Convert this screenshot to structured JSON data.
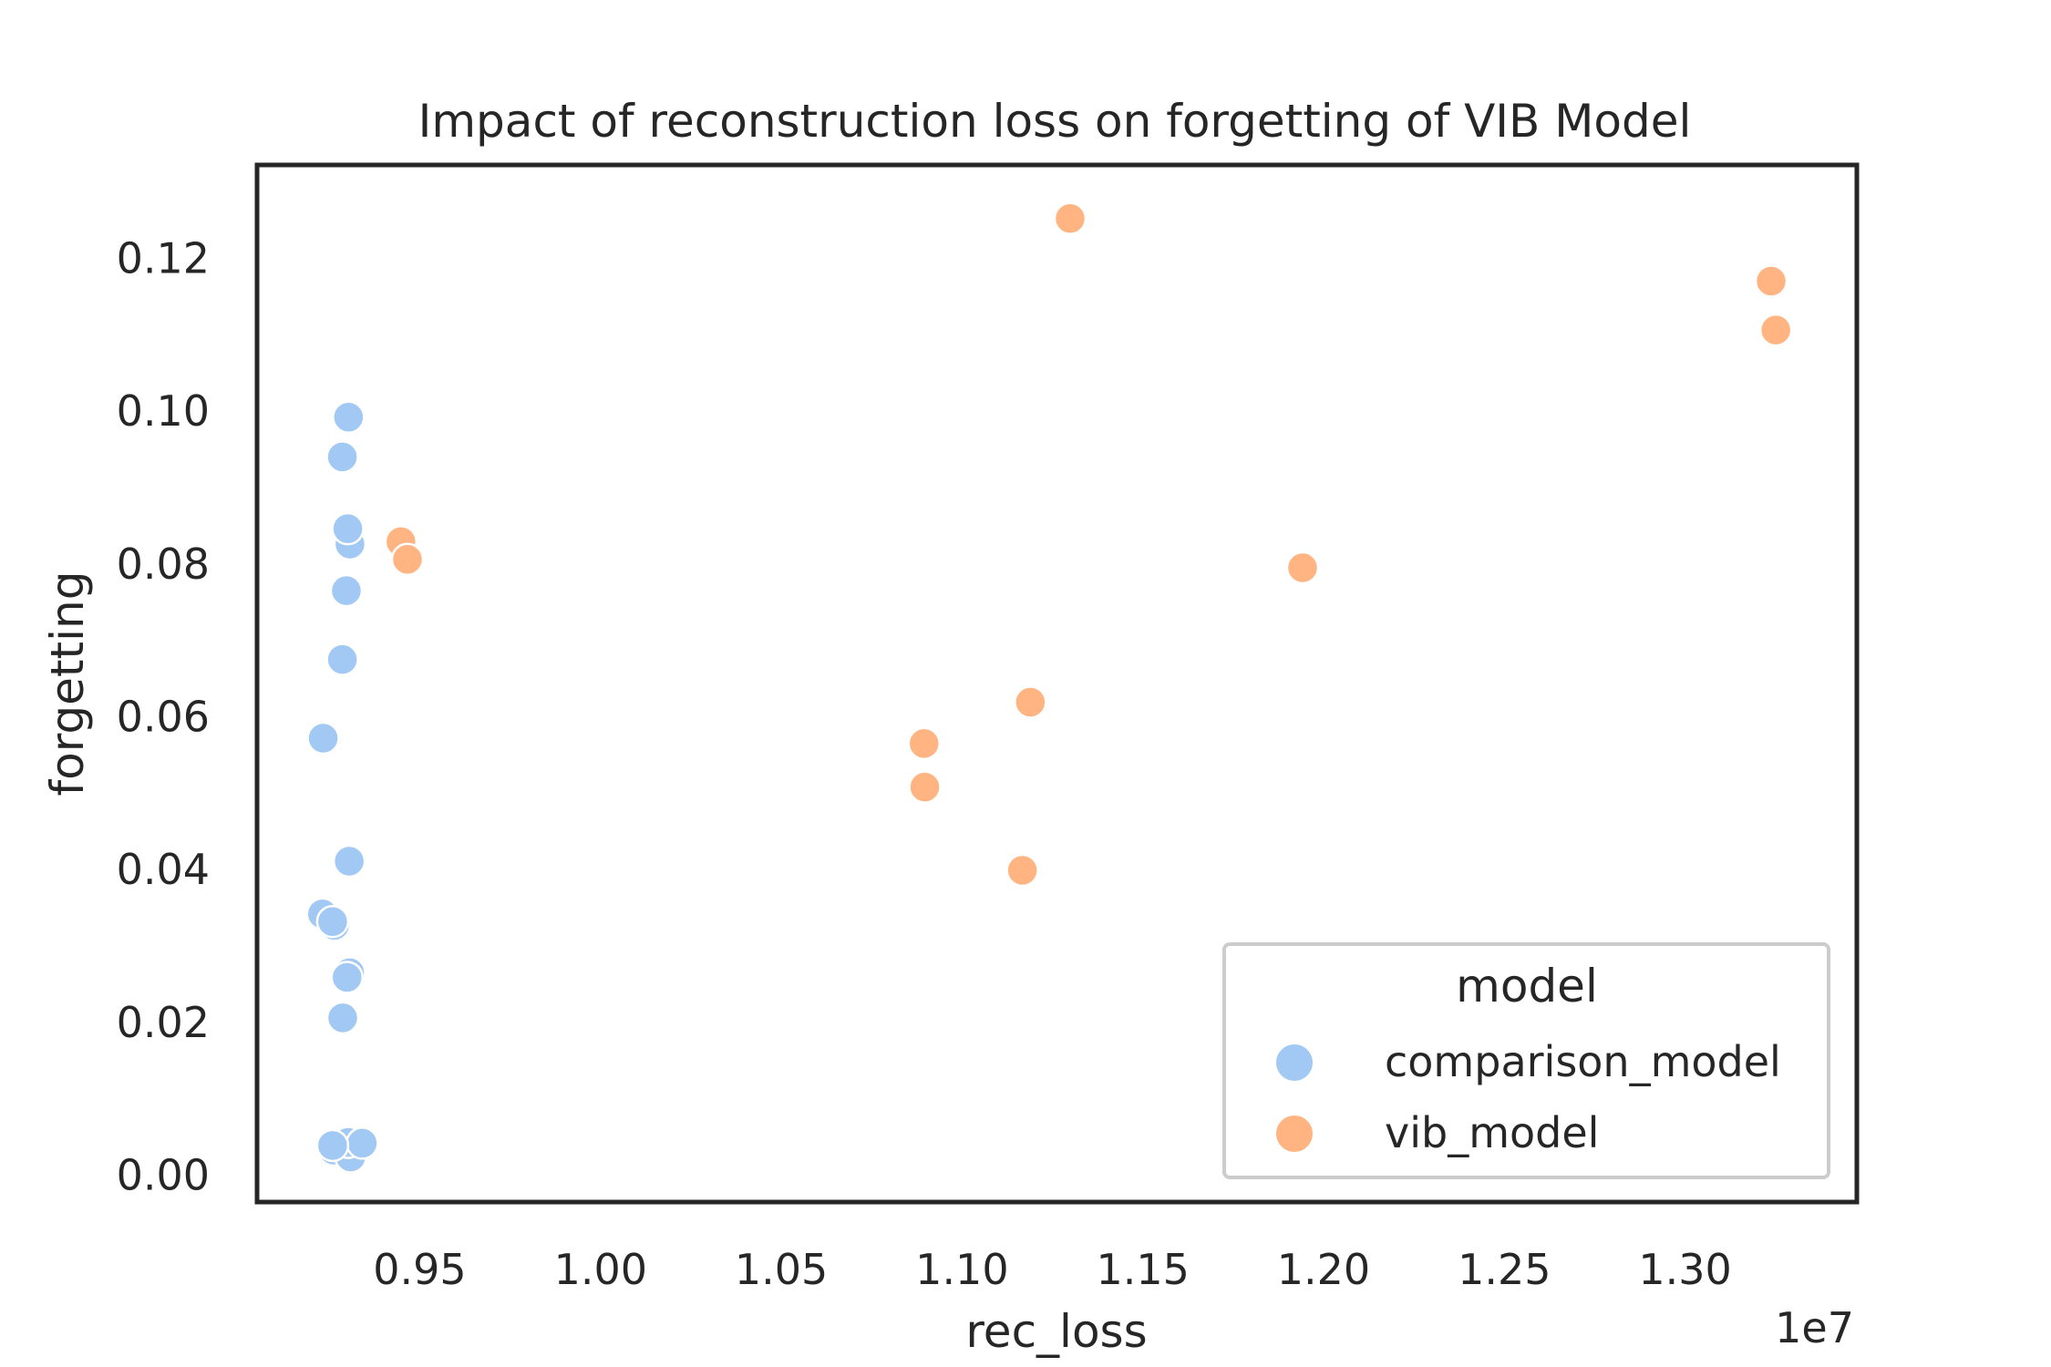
{
  "chart_data": {
    "type": "scatter",
    "title": "Impact of reconstruction loss on forgetting of VIB Model",
    "xlabel": "rec_loss",
    "ylabel": "forgetting",
    "x_offset_label": "1e7",
    "xlim": [
      0.905,
      1.3475
    ],
    "ylim": [
      -0.0035,
      0.1322
    ],
    "xticks": [
      0.95,
      1.0,
      1.05,
      1.1,
      1.15,
      1.2,
      1.25,
      1.3
    ],
    "xtick_labels": [
      "0.95",
      "1.00",
      "1.05",
      "1.10",
      "1.15",
      "1.20",
      "1.25",
      "1.30"
    ],
    "yticks": [
      0.0,
      0.02,
      0.04,
      0.06,
      0.08,
      0.1,
      0.12
    ],
    "ytick_labels": [
      "0.00",
      "0.02",
      "0.04",
      "0.06",
      "0.08",
      "0.10",
      "0.12"
    ],
    "grid": false,
    "legend": {
      "title": "model",
      "placement": "lower-right"
    },
    "series": [
      {
        "name": "comparison_model",
        "color": "#a1c9f4",
        "points": [
          {
            "x": 0.9303,
            "y": 0.0992
          },
          {
            "x": 0.9286,
            "y": 0.094
          },
          {
            "x": 0.9307,
            "y": 0.0826
          },
          {
            "x": 0.9301,
            "y": 0.0846
          },
          {
            "x": 0.9297,
            "y": 0.0765
          },
          {
            "x": 0.9286,
            "y": 0.0675
          },
          {
            "x": 0.9233,
            "y": 0.0572
          },
          {
            "x": 0.9305,
            "y": 0.0411
          },
          {
            "x": 0.9231,
            "y": 0.0342
          },
          {
            "x": 0.9264,
            "y": 0.0327
          },
          {
            "x": 0.9259,
            "y": 0.0332
          },
          {
            "x": 0.9306,
            "y": 0.0265
          },
          {
            "x": 0.9299,
            "y": 0.0259
          },
          {
            "x": 0.9287,
            "y": 0.0206
          },
          {
            "x": 0.9262,
            "y": 0.0033
          },
          {
            "x": 0.9309,
            "y": 0.0024
          },
          {
            "x": 0.9302,
            "y": 0.0043
          },
          {
            "x": 0.9341,
            "y": 0.0042
          },
          {
            "x": 0.9259,
            "y": 0.0039
          }
        ]
      },
      {
        "name": "vib_model",
        "color": "#ffb482",
        "points": [
          {
            "x": 1.1299,
            "y": 0.1252
          },
          {
            "x": 1.3238,
            "y": 0.117
          },
          {
            "x": 1.3251,
            "y": 0.1106
          },
          {
            "x": 0.9448,
            "y": 0.0829
          },
          {
            "x": 0.9466,
            "y": 0.0806
          },
          {
            "x": 1.1942,
            "y": 0.0795
          },
          {
            "x": 1.1189,
            "y": 0.0619
          },
          {
            "x": 1.0895,
            "y": 0.0565
          },
          {
            "x": 1.0897,
            "y": 0.0508
          },
          {
            "x": 1.1167,
            "y": 0.0399
          }
        ]
      }
    ]
  }
}
